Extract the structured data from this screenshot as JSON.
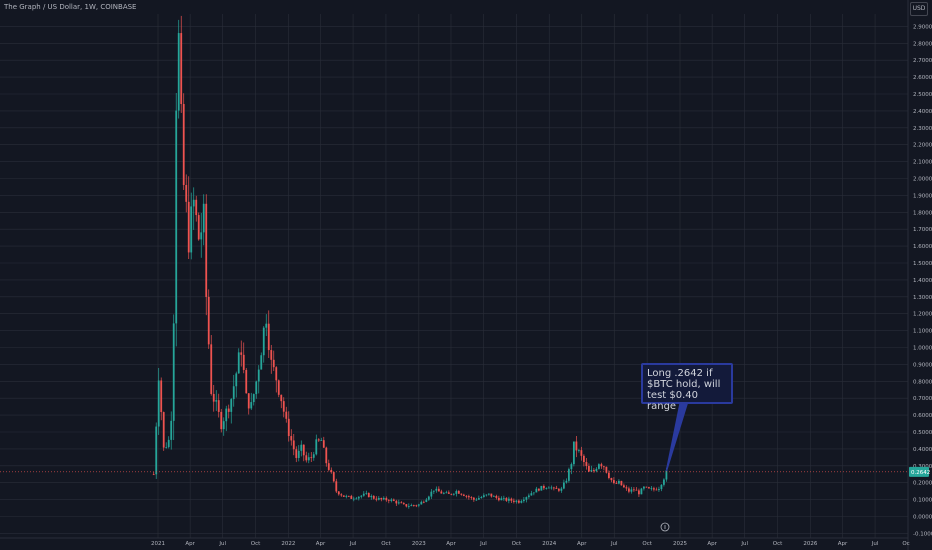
{
  "header": {
    "title": "The Graph / US Dollar, 1W, COINBASE",
    "currency": "USD"
  },
  "annotation": {
    "text": "Long .2642 if $BTC hold, will test $0.40 range"
  },
  "price_tag": "0.2642",
  "colors": {
    "background": "#131722",
    "grid": "#2a2e39",
    "up": "#26a69a",
    "down": "#ef5350",
    "annotation_border": "#2a3a9e",
    "annotation_fill": "#131a3a",
    "arrow": "#2962ff"
  },
  "chart_data": {
    "type": "candlestick",
    "title": "The Graph / US Dollar, 1W, COINBASE",
    "ylabel": "USD",
    "ylim": [
      -0.1,
      3.0
    ],
    "y_ticks": [
      "2.9000",
      "2.8000",
      "2.7000",
      "2.6000",
      "2.5000",
      "2.4000",
      "2.3000",
      "2.2000",
      "2.1000",
      "2.0000",
      "1.9000",
      "1.8000",
      "1.7000",
      "1.6000",
      "1.5000",
      "1.4000",
      "1.3000",
      "1.2000",
      "1.1000",
      "1.0000",
      "0.9000",
      "0.8000",
      "0.7000",
      "0.6000",
      "0.5000",
      "0.4000",
      "0.3000",
      "0.2000",
      "0.1000",
      "0.0000",
      "-0.1000"
    ],
    "x_ticks": [
      "2021",
      "Apr",
      "Jul",
      "Oct",
      "2022",
      "Apr",
      "Jul",
      "Oct",
      "2023",
      "Apr",
      "Jul",
      "Oct",
      "2024",
      "Apr",
      "Jul",
      "Oct",
      "2025",
      "Apr",
      "Jul",
      "Oct",
      "2026",
      "Apr",
      "Jul",
      "Oc"
    ],
    "x_start": "2020-12",
    "interval": "1W",
    "close_path": [
      [
        "2020-12-20",
        0.25
      ],
      [
        "2020-12-27",
        0.55
      ],
      [
        "2021-01-03",
        0.85
      ],
      [
        "2021-01-17",
        0.4
      ],
      [
        "2021-01-31",
        0.45
      ],
      [
        "2021-02-07",
        0.6
      ],
      [
        "2021-02-14",
        1.2
      ],
      [
        "2021-02-21",
        2.5
      ],
      [
        "2021-02-28",
        2.8
      ],
      [
        "2021-03-07",
        2.3
      ],
      [
        "2021-03-14",
        1.95
      ],
      [
        "2021-03-28",
        1.65
      ],
      [
        "2021-04-11",
        1.85
      ],
      [
        "2021-04-25",
        1.65
      ],
      [
        "2021-05-09",
        1.75
      ],
      [
        "2021-05-16",
        1.3
      ],
      [
        "2021-05-30",
        0.75
      ],
      [
        "2021-06-13",
        0.65
      ],
      [
        "2021-06-27",
        0.55
      ],
      [
        "2021-07-11",
        0.62
      ],
      [
        "2021-07-25",
        0.7
      ],
      [
        "2021-08-08",
        0.85
      ],
      [
        "2021-08-22",
        1.0
      ],
      [
        "2021-09-05",
        0.7
      ],
      [
        "2021-09-19",
        0.65
      ],
      [
        "2021-10-03",
        0.8
      ],
      [
        "2021-10-17",
        1.0
      ],
      [
        "2021-10-31",
        1.2
      ],
      [
        "2021-11-14",
        0.9
      ],
      [
        "2021-11-28",
        0.82
      ],
      [
        "2021-12-12",
        0.7
      ],
      [
        "2021-12-26",
        0.55
      ],
      [
        "2022-01-09",
        0.45
      ],
      [
        "2022-01-23",
        0.35
      ],
      [
        "2022-02-06",
        0.4
      ],
      [
        "2022-02-20",
        0.33
      ],
      [
        "2022-03-06",
        0.35
      ],
      [
        "2022-03-20",
        0.43
      ],
      [
        "2022-04-03",
        0.45
      ],
      [
        "2022-04-17",
        0.32
      ],
      [
        "2022-05-01",
        0.25
      ],
      [
        "2022-05-15",
        0.15
      ],
      [
        "2022-06-05",
        0.12
      ],
      [
        "2022-06-26",
        0.11
      ],
      [
        "2022-07-17",
        0.12
      ],
      [
        "2022-08-07",
        0.13
      ],
      [
        "2022-08-28",
        0.11
      ],
      [
        "2022-09-18",
        0.1
      ],
      [
        "2022-10-09",
        0.1
      ],
      [
        "2022-10-30",
        0.085
      ],
      [
        "2022-11-20",
        0.065
      ],
      [
        "2022-12-11",
        0.065
      ],
      [
        "2023-01-01",
        0.07
      ],
      [
        "2023-01-22",
        0.11
      ],
      [
        "2023-02-12",
        0.16
      ],
      [
        "2023-03-05",
        0.14
      ],
      [
        "2023-03-26",
        0.13
      ],
      [
        "2023-04-16",
        0.15
      ],
      [
        "2023-05-07",
        0.13
      ],
      [
        "2023-06-04",
        0.1
      ],
      [
        "2023-06-25",
        0.115
      ],
      [
        "2023-07-16",
        0.13
      ],
      [
        "2023-08-06",
        0.11
      ],
      [
        "2023-08-27",
        0.1
      ],
      [
        "2023-09-17",
        0.095
      ],
      [
        "2023-10-08",
        0.09
      ],
      [
        "2023-10-29",
        0.12
      ],
      [
        "2023-11-19",
        0.15
      ],
      [
        "2023-12-10",
        0.17
      ],
      [
        "2023-12-31",
        0.18
      ],
      [
        "2024-01-14",
        0.16
      ],
      [
        "2024-02-04",
        0.16
      ],
      [
        "2024-02-18",
        0.22
      ],
      [
        "2024-03-03",
        0.32
      ],
      [
        "2024-03-10",
        0.42
      ],
      [
        "2024-03-24",
        0.38
      ],
      [
        "2024-04-07",
        0.32
      ],
      [
        "2024-04-21",
        0.26
      ],
      [
        "2024-05-05",
        0.27
      ],
      [
        "2024-05-19",
        0.32
      ],
      [
        "2024-06-02",
        0.3
      ],
      [
        "2024-06-16",
        0.24
      ],
      [
        "2024-06-30",
        0.19
      ],
      [
        "2024-07-14",
        0.2
      ],
      [
        "2024-07-28",
        0.17
      ],
      [
        "2024-08-11",
        0.15
      ],
      [
        "2024-08-25",
        0.16
      ],
      [
        "2024-09-08",
        0.14
      ],
      [
        "2024-09-22",
        0.17
      ],
      [
        "2024-10-06",
        0.16
      ],
      [
        "2024-10-20",
        0.16
      ],
      [
        "2024-11-03",
        0.17
      ],
      [
        "2024-11-10",
        0.2
      ],
      [
        "2024-11-17",
        0.23
      ],
      [
        "2024-11-24",
        0.26
      ]
    ]
  }
}
